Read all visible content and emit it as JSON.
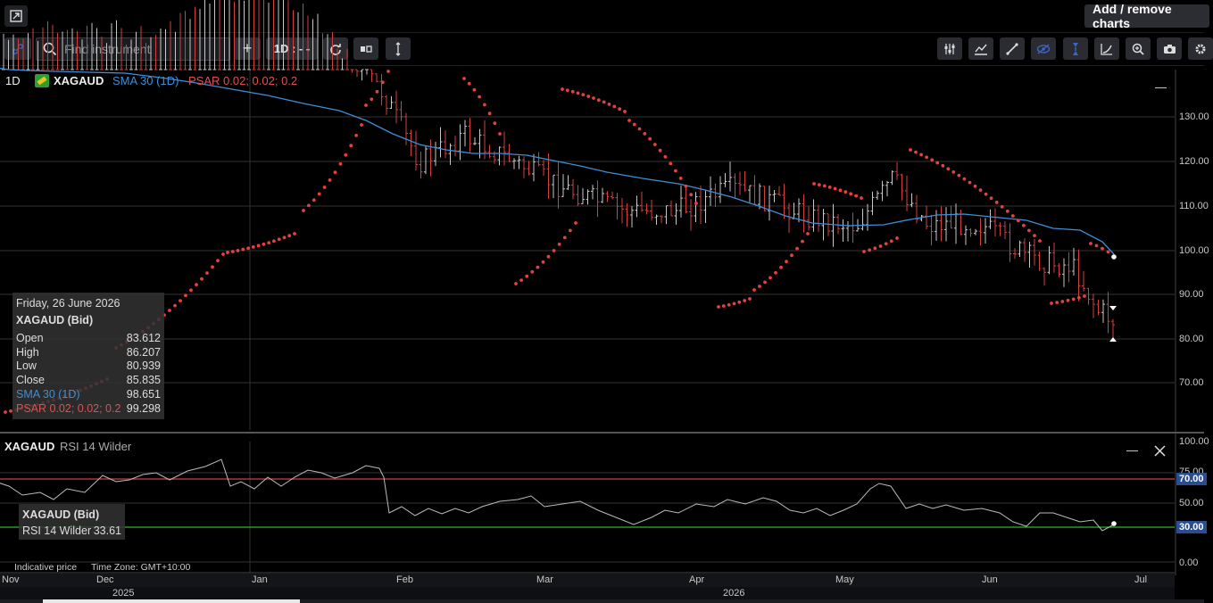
{
  "toolbar": {
    "search_placeholder": "Find instrument",
    "add_label": "+",
    "interval_label": "1D : - -",
    "add_remove_charts": "Add / remove charts"
  },
  "main_chart": {
    "timeframe": "1D",
    "symbol": "XAGAUD",
    "sma_label": "SMA 30 (1D)",
    "psar_label": "PSAR 0.02; 0.02; 0.2",
    "collapse_symbol": "—"
  },
  "tooltip": {
    "date": "Friday, 26 June 2026",
    "instrument": "XAGAUD (Bid)",
    "rows": [
      {
        "label": "Open",
        "value": "83.612"
      },
      {
        "label": "High",
        "value": "86.207"
      },
      {
        "label": "Low",
        "value": "80.939"
      },
      {
        "label": "Close",
        "value": "85.835"
      },
      {
        "label": "SMA 30 (1D)",
        "value": "98.651"
      },
      {
        "label": "PSAR 0.02; 0.02; 0.2",
        "value": "99.298"
      }
    ]
  },
  "rsi_panel": {
    "symbol": "XAGAUD",
    "label": "RSI 14 Wilder",
    "tooltip_instrument": "XAGAUD (Bid)",
    "tooltip_label": "RSI 14 Wilder",
    "tooltip_value": "33.61"
  },
  "footer": {
    "indicative": "Indicative price",
    "timezone": "Time Zone: GMT+10:00"
  },
  "chart_data": {
    "type": "candlestick",
    "price_axis": {
      "ticks": [
        "130.00",
        "120.00",
        "110.00",
        "100.00",
        "90.00",
        "80.00",
        "70.00"
      ],
      "ylim": [
        60,
        138
      ]
    },
    "rsi_axis": {
      "ticks": [
        "100.00",
        "75.00",
        "50.00",
        "0.00"
      ],
      "levels": [
        {
          "value": "70.00",
          "color": "#e05050"
        },
        {
          "value": "30.00",
          "color": "#2eb82e"
        }
      ]
    },
    "x_month_labels": [
      "Nov",
      "Dec",
      "Jan",
      "Feb",
      "Mar",
      "Apr",
      "May",
      "Jun",
      "Jul"
    ],
    "x_year_labels": [
      "2025",
      "2026"
    ],
    "colors": {
      "up": "#c8c8c8",
      "down": "#d04040",
      "sma": "#3d8fd6",
      "psar": "#e8403c",
      "rsi": "#bbbbbb"
    },
    "sma": [
      [
        -5,
        76
      ],
      [
        10,
        78
      ],
      [
        30,
        79
      ],
      [
        60,
        80
      ],
      [
        100,
        81
      ],
      [
        140,
        82
      ],
      [
        180,
        87
      ],
      [
        220,
        93
      ],
      [
        260,
        100
      ],
      [
        300,
        107
      ],
      [
        340,
        116
      ],
      [
        380,
        124
      ],
      [
        410,
        135
      ],
      [
        440,
        150
      ],
      [
        470,
        162
      ],
      [
        500,
        168
      ],
      [
        530,
        172
      ],
      [
        560,
        172
      ],
      [
        590,
        174
      ],
      [
        620,
        180
      ],
      [
        650,
        186
      ],
      [
        680,
        193
      ],
      [
        720,
        200
      ],
      [
        760,
        206
      ],
      [
        790,
        213
      ],
      [
        820,
        221
      ],
      [
        850,
        231
      ],
      [
        880,
        242
      ],
      [
        910,
        250
      ],
      [
        950,
        253
      ],
      [
        990,
        252
      ],
      [
        1020,
        246
      ],
      [
        1050,
        241
      ],
      [
        1080,
        240
      ],
      [
        1110,
        243
      ],
      [
        1150,
        247
      ],
      [
        1180,
        256
      ],
      [
        1210,
        258
      ],
      [
        1235,
        271
      ],
      [
        1248,
        285
      ]
    ],
    "psar": {
      "segments": [
        {
          "x0": 6,
          "x1": 120,
          "y0": 462,
          "y1": 425
        },
        {
          "x0": 130,
          "x1": 250,
          "y0": 390,
          "y1": 285
        },
        {
          "x0": 255,
          "x1": 330,
          "y0": 283,
          "y1": 262
        },
        {
          "x0": 340,
          "x1": 405,
          "y0": 236,
          "y1": 140
        },
        {
          "x0": 410,
          "x1": 435,
          "y0": 118,
          "y1": 80
        },
        {
          "x0": 520,
          "x1": 560,
          "y0": 88,
          "y1": 150
        },
        {
          "x0": 578,
          "x1": 645,
          "y0": 318,
          "y1": 250
        },
        {
          "x0": 630,
          "x1": 700,
          "y0": 100,
          "y1": 125
        },
        {
          "x0": 705,
          "x1": 780,
          "y0": 135,
          "y1": 228
        },
        {
          "x0": 805,
          "x1": 840,
          "y0": 344,
          "y1": 335
        },
        {
          "x0": 845,
          "x1": 905,
          "y0": 325,
          "y1": 262
        },
        {
          "x0": 912,
          "x1": 965,
          "y0": 206,
          "y1": 222
        },
        {
          "x0": 968,
          "x1": 1005,
          "y0": 282,
          "y1": 267
        },
        {
          "x0": 1020,
          "x1": 1165,
          "y0": 168,
          "y1": 270
        },
        {
          "x0": 1178,
          "x1": 1215,
          "y0": 340,
          "y1": 332
        },
        {
          "x0": 1222,
          "x1": 1248,
          "y0": 273,
          "y1": 287
        }
      ]
    },
    "rsi": [
      [
        -5,
        540
      ],
      [
        10,
        545
      ],
      [
        25,
        555
      ],
      [
        45,
        552
      ],
      [
        60,
        560
      ],
      [
        75,
        548
      ],
      [
        95,
        552
      ],
      [
        115,
        533
      ],
      [
        130,
        540
      ],
      [
        145,
        538
      ],
      [
        160,
        532
      ],
      [
        175,
        530
      ],
      [
        190,
        538
      ],
      [
        210,
        528
      ],
      [
        230,
        523
      ],
      [
        248,
        515
      ],
      [
        258,
        545
      ],
      [
        270,
        540
      ],
      [
        285,
        548
      ],
      [
        300,
        535
      ],
      [
        315,
        545
      ],
      [
        330,
        535
      ],
      [
        345,
        527
      ],
      [
        360,
        530
      ],
      [
        375,
        536
      ],
      [
        395,
        530
      ],
      [
        410,
        522
      ],
      [
        425,
        525
      ],
      [
        430,
        535
      ],
      [
        436,
        575
      ],
      [
        450,
        568
      ],
      [
        465,
        578
      ],
      [
        480,
        570
      ],
      [
        495,
        576
      ],
      [
        510,
        570
      ],
      [
        525,
        575
      ],
      [
        540,
        568
      ],
      [
        560,
        562
      ],
      [
        580,
        560
      ],
      [
        595,
        556
      ],
      [
        610,
        568
      ],
      [
        630,
        565
      ],
      [
        650,
        562
      ],
      [
        670,
        572
      ],
      [
        690,
        580
      ],
      [
        710,
        588
      ],
      [
        730,
        580
      ],
      [
        745,
        572
      ],
      [
        760,
        575
      ],
      [
        780,
        565
      ],
      [
        800,
        568
      ],
      [
        815,
        560
      ],
      [
        835,
        565
      ],
      [
        855,
        558
      ],
      [
        870,
        562
      ],
      [
        885,
        572
      ],
      [
        900,
        575
      ],
      [
        915,
        570
      ],
      [
        930,
        578
      ],
      [
        945,
        572
      ],
      [
        960,
        565
      ],
      [
        975,
        548
      ],
      [
        985,
        542
      ],
      [
        998,
        545
      ],
      [
        1015,
        570
      ],
      [
        1030,
        565
      ],
      [
        1045,
        570
      ],
      [
        1060,
        566
      ],
      [
        1080,
        572
      ],
      [
        1100,
        570
      ],
      [
        1120,
        575
      ],
      [
        1135,
        585
      ],
      [
        1150,
        590
      ],
      [
        1165,
        575
      ],
      [
        1180,
        575
      ],
      [
        1195,
        580
      ],
      [
        1210,
        585
      ],
      [
        1225,
        583
      ],
      [
        1235,
        595
      ],
      [
        1248,
        588
      ]
    ]
  }
}
